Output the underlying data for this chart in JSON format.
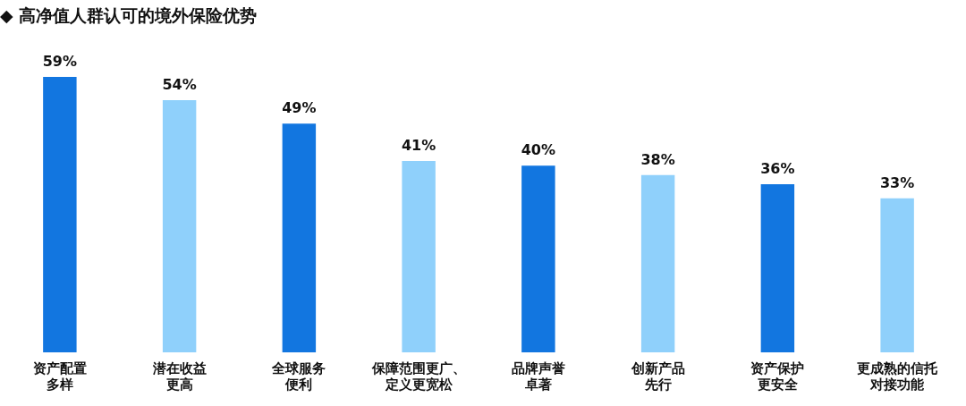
{
  "chart_data": {
    "type": "bar",
    "title": "◆ 高净值人群认可的境外保险优势",
    "categories": [
      "资产配置多样",
      "潜在收益更高",
      "全球服务便利",
      "保障范围更广、定义更宽松",
      "品牌声誉卓著",
      "创新产品先行",
      "资产保护更安全",
      "更成熟的信托对接功能"
    ],
    "values": [
      59,
      54,
      49,
      41,
      40,
      38,
      36,
      33
    ],
    "colors": [
      "#1276e0",
      "#8fd0fb",
      "#1276e0",
      "#8fd0fb",
      "#1276e0",
      "#8fd0fb",
      "#1276e0",
      "#8fd0fb"
    ],
    "value_labels": [
      "59%",
      "54%",
      "49%",
      "41%",
      "40%",
      "38%",
      "36%",
      "33%"
    ],
    "grid": false,
    "legend": false
  }
}
